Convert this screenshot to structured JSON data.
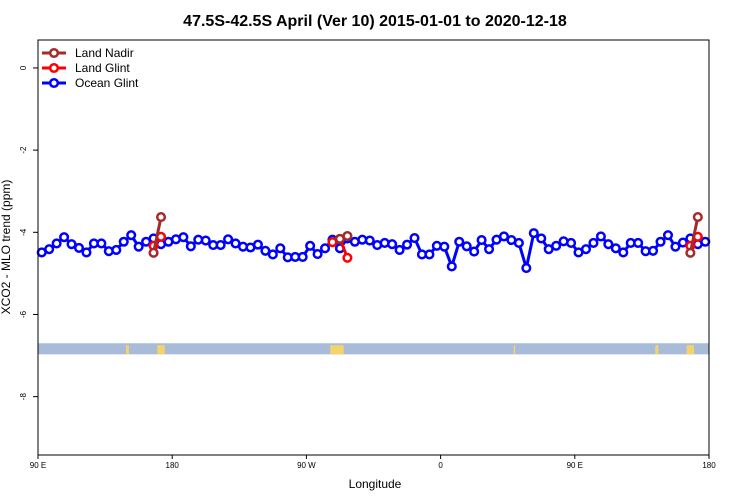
{
  "chart_data": {
    "type": "line",
    "title": "47.5S-42.5S April (Ver 10)   2015-01-01 to 2020-12-18",
    "xlabel": "Longitude",
    "ylabel": "XCO2 - MLO trend (ppm)",
    "xlim": [
      90,
      540
    ],
    "ylim": [
      -9.42,
      0.68
    ],
    "x_ticks": [
      {
        "value": 90,
        "label": "90 E"
      },
      {
        "value": 180,
        "label": "180"
      },
      {
        "value": 270,
        "label": "90 W"
      },
      {
        "value": 360,
        "label": "0"
      },
      {
        "value": 450,
        "label": "90 E"
      },
      {
        "value": 540,
        "label": "180"
      }
    ],
    "y_ticks": [
      {
        "value": 0,
        "label": "0"
      },
      {
        "value": -2,
        "label": "-2"
      },
      {
        "value": -4,
        "label": "-4"
      },
      {
        "value": -6,
        "label": "-6"
      },
      {
        "value": -8,
        "label": "-8"
      }
    ],
    "grid": false,
    "legend_position": "top-left",
    "land_band": {
      "y_range": [
        -6.7,
        -6.97
      ],
      "ocean_color": "#a8bcd9",
      "land_color": "#f5d36b",
      "land_longitudes": [
        [
          149,
          151
        ],
        [
          170,
          175
        ],
        [
          286,
          295
        ],
        [
          409,
          410
        ],
        [
          504,
          506
        ],
        [
          525,
          530
        ]
      ]
    },
    "series": [
      {
        "name": "Land Nadir",
        "color": "#a52a2a",
        "x": [
          167.5,
          172.5,
          292.5,
          297.5,
          527.5,
          532.5
        ],
        "y": [
          -4.5,
          -3.63,
          -4.16,
          -4.09,
          -4.5,
          -3.63
        ],
        "segments": [
          [
            0,
            1
          ],
          [
            2,
            3
          ],
          [
            4,
            5
          ]
        ]
      },
      {
        "name": "Land Glint",
        "color": "#ff0000",
        "x": [
          167.5,
          172.5,
          287.5,
          292.5,
          297.5,
          527.5,
          532.5
        ],
        "y": [
          -4.33,
          -4.11,
          -4.24,
          -4.16,
          -4.62,
          -4.33,
          -4.11
        ],
        "segments": [
          [
            0,
            1
          ],
          [
            2,
            3,
            4
          ],
          [
            5,
            6
          ]
        ]
      },
      {
        "name": "Ocean Glint",
        "color": "#0000ff",
        "x0": 92.5,
        "dx": 5,
        "y": [
          -4.49,
          -4.41,
          -4.27,
          -4.12,
          -4.29,
          -4.38,
          -4.49,
          -4.27,
          -4.27,
          -4.46,
          -4.43,
          -4.23,
          -4.07,
          -4.35,
          -4.23,
          -4.15,
          -4.29,
          -4.23,
          -4.17,
          -4.12,
          -4.34,
          -4.18,
          -4.2,
          -4.31,
          -4.31,
          -4.17,
          -4.27,
          -4.35,
          -4.37,
          -4.3,
          -4.45,
          -4.54,
          -4.39,
          -4.61,
          -4.6,
          -4.6,
          -4.33,
          -4.53,
          -4.39,
          -4.18,
          -4.39,
          -4.15,
          -4.23,
          -4.18,
          -4.2,
          -4.31,
          -4.26,
          -4.29,
          -4.43,
          -4.3,
          -4.14,
          -4.54,
          -4.54,
          -4.33,
          -4.35,
          -4.83,
          -4.23,
          -4.34,
          -4.47,
          -4.19,
          -4.41,
          -4.18,
          -4.1,
          -4.19,
          -4.26,
          -4.87,
          -4.02,
          -4.15,
          -4.41,
          -4.33,
          -4.22,
          -4.26,
          -4.49,
          -4.41,
          -4.26,
          -4.1,
          -4.29,
          -4.39,
          -4.49,
          -4.26,
          -4.26,
          -4.46,
          -4.45,
          -4.23,
          -4.07,
          -4.35,
          -4.25,
          -4.15,
          -4.29,
          -4.23
        ]
      }
    ]
  }
}
